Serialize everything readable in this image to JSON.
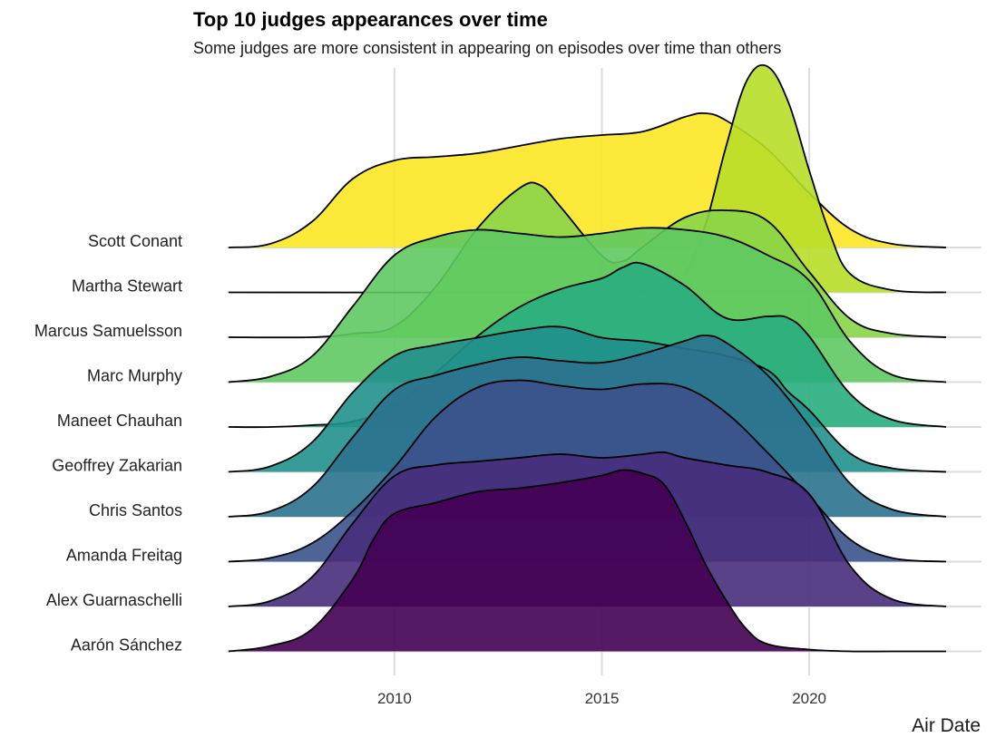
{
  "chart_data": {
    "type": "ridgeline",
    "title": "Top 10 judges appearances over time",
    "subtitle": "Some judges are more consistent in appearing on episodes over time than others",
    "xlabel": "Air Date",
    "ylabel": "",
    "xlim": [
      2006,
      2023.3
    ],
    "x_ticks": [
      2010,
      2015,
      2020
    ],
    "grid": true,
    "series": [
      {
        "name": "Aarón Sánchez",
        "color": "#440154",
        "x": [
          2006.0,
          2007.0,
          2008.0,
          2009.0,
          2009.5,
          2010.0,
          2011.0,
          2012.0,
          2013.0,
          2014.0,
          2015.0,
          2015.5,
          2016.0,
          2016.5,
          2017.0,
          2017.5,
          2018.0,
          2018.5,
          2019.0,
          2020.0,
          2021.0,
          2022.0,
          2023.3
        ],
        "density": [
          0,
          0.03,
          0.12,
          0.4,
          0.62,
          0.76,
          0.82,
          0.88,
          0.9,
          0.93,
          0.97,
          1.0,
          0.98,
          0.92,
          0.72,
          0.48,
          0.28,
          0.12,
          0.04,
          0.01,
          0,
          0,
          0
        ]
      },
      {
        "name": "Alex Guarnaschelli",
        "color": "#472D7B",
        "x": [
          2006.0,
          2007.0,
          2008.0,
          2009.0,
          2010.0,
          2011.0,
          2012.0,
          2013.0,
          2014.0,
          2015.0,
          2016.0,
          2016.5,
          2017.0,
          2018.0,
          2019.0,
          2020.0,
          2021.0,
          2022.0,
          2023.3
        ],
        "density": [
          0,
          0.03,
          0.16,
          0.46,
          0.72,
          0.78,
          0.8,
          0.82,
          0.84,
          0.82,
          0.84,
          0.85,
          0.82,
          0.78,
          0.74,
          0.62,
          0.22,
          0.04,
          0
        ],
        "x_peak": 2016.5
      },
      {
        "name": "Amanda Freitag",
        "color": "#3B528B",
        "x": [
          2006.0,
          2007.0,
          2008.0,
          2009.0,
          2010.0,
          2011.0,
          2012.0,
          2013.0,
          2014.0,
          2015.0,
          2016.0,
          2017.0,
          2018.0,
          2019.0,
          2020.0,
          2021.0,
          2022.0,
          2023.3
        ],
        "density": [
          0,
          0.02,
          0.1,
          0.28,
          0.52,
          0.8,
          0.96,
          1.0,
          0.97,
          0.95,
          0.98,
          0.96,
          0.82,
          0.6,
          0.36,
          0.12,
          0.02,
          0
        ]
      },
      {
        "name": "Chris Santos",
        "color": "#2C728E",
        "x": [
          2006.0,
          2007.0,
          2008.0,
          2009.0,
          2010.0,
          2011.0,
          2012.0,
          2013.0,
          2014.0,
          2015.0,
          2016.0,
          2017.0,
          2017.5,
          2018.0,
          2019.0,
          2020.0,
          2021.0,
          2022.0,
          2023.3
        ],
        "density": [
          0,
          0.03,
          0.16,
          0.44,
          0.7,
          0.78,
          0.84,
          0.88,
          0.86,
          0.85,
          0.9,
          0.97,
          1.0,
          0.96,
          0.78,
          0.5,
          0.18,
          0.04,
          0
        ]
      },
      {
        "name": "Geoffrey Zakarian",
        "color": "#21908C",
        "x": [
          2006.0,
          2007.0,
          2008.0,
          2009.0,
          2010.0,
          2011.0,
          2012.0,
          2013.0,
          2014.0,
          2015.0,
          2016.0,
          2017.0,
          2018.0,
          2019.0,
          2019.5,
          2020.0,
          2021.0,
          2022.0,
          2023.3
        ],
        "density": [
          0,
          0.03,
          0.16,
          0.44,
          0.64,
          0.7,
          0.74,
          0.78,
          0.8,
          0.74,
          0.72,
          0.68,
          0.64,
          0.56,
          0.44,
          0.34,
          0.1,
          0.02,
          0
        ]
      },
      {
        "name": "Maneet Chauhan",
        "color": "#28AE80",
        "x": [
          2006.0,
          2007.0,
          2008.0,
          2009.0,
          2010.0,
          2011.0,
          2012.0,
          2013.0,
          2014.0,
          2015.0,
          2015.5,
          2016.0,
          2017.0,
          2018.0,
          2019.0,
          2019.5,
          2020.0,
          2021.0,
          2022.0,
          2023.3
        ],
        "density": [
          0,
          0.0,
          0.01,
          0.03,
          0.12,
          0.3,
          0.5,
          0.66,
          0.76,
          0.82,
          0.88,
          0.9,
          0.78,
          0.6,
          0.61,
          0.6,
          0.5,
          0.18,
          0.04,
          0
        ]
      },
      {
        "name": "Marc Murphy",
        "color": "#5EC962",
        "x": [
          2006.0,
          2007.0,
          2008.0,
          2009.0,
          2010.0,
          2011.0,
          2012.0,
          2013.0,
          2014.0,
          2015.0,
          2016.0,
          2017.0,
          2018.0,
          2019.0,
          2020.0,
          2021.0,
          2022.0,
          2023.3
        ],
        "density": [
          0,
          0.03,
          0.14,
          0.42,
          0.7,
          0.8,
          0.84,
          0.82,
          0.8,
          0.82,
          0.85,
          0.84,
          0.8,
          0.7,
          0.56,
          0.22,
          0.04,
          0
        ]
      },
      {
        "name": "Marcus Samuelsson",
        "color": "#8AD548",
        "x": [
          2006.0,
          2008.0,
          2009.0,
          2010.0,
          2011.0,
          2012.0,
          2013.0,
          2013.5,
          2014.0,
          2015.0,
          2015.5,
          2016.0,
          2017.0,
          2018.0,
          2019.0,
          2020.0,
          2021.0,
          2022.0,
          2023.3
        ],
        "density": [
          0,
          0.0,
          0.02,
          0.06,
          0.28,
          0.6,
          0.82,
          0.84,
          0.72,
          0.45,
          0.42,
          0.5,
          0.66,
          0.7,
          0.64,
          0.36,
          0.1,
          0.02,
          0
        ]
      },
      {
        "name": "Martha Stewart",
        "color": "#B8DE29",
        "x": [
          2006.0,
          2015.0,
          2016.0,
          2016.5,
          2017.0,
          2017.5,
          2018.0,
          2018.5,
          2019.0,
          2019.5,
          2020.0,
          2020.5,
          2021.0,
          2022.0,
          2023.3
        ],
        "density": [
          0,
          0,
          0.01,
          0.02,
          0.08,
          0.3,
          0.65,
          0.94,
          1.0,
          0.84,
          0.54,
          0.26,
          0.08,
          0.01,
          0
        ]
      },
      {
        "name": "Scott Conant",
        "color": "#FDE725",
        "x": [
          2006.0,
          2007.0,
          2008.0,
          2009.0,
          2010.0,
          2011.0,
          2012.0,
          2013.0,
          2014.0,
          2015.0,
          2016.0,
          2017.0,
          2017.5,
          2018.0,
          2019.0,
          2020.0,
          2021.0,
          2022.0,
          2023.3
        ],
        "density": [
          0,
          0.02,
          0.14,
          0.38,
          0.48,
          0.5,
          0.52,
          0.56,
          0.6,
          0.62,
          0.64,
          0.72,
          0.74,
          0.7,
          0.54,
          0.3,
          0.1,
          0.02,
          0
        ]
      }
    ]
  }
}
